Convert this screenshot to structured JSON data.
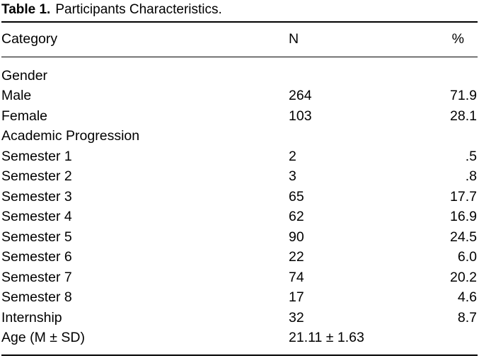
{
  "caption": {
    "label": "Table 1.",
    "text": "Participants Characteristics."
  },
  "table": {
    "columns": [
      "Category",
      "N",
      "%"
    ],
    "rows": [
      {
        "category": "Gender",
        "n": "",
        "pct": ""
      },
      {
        "category": "Male",
        "n": "264",
        "pct": "71.9"
      },
      {
        "category": "Female",
        "n": "103",
        "pct": "28.1"
      },
      {
        "category": "Academic Progression",
        "n": "",
        "pct": ""
      },
      {
        "category": "Semester 1",
        "n": "2",
        "pct": ".5"
      },
      {
        "category": "Semester 2",
        "n": "3",
        "pct": ".8"
      },
      {
        "category": "Semester 3",
        "n": "65",
        "pct": "17.7"
      },
      {
        "category": "Semester 4",
        "n": "62",
        "pct": "16.9"
      },
      {
        "category": "Semester 5",
        "n": "90",
        "pct": "24.5"
      },
      {
        "category": "Semester 6",
        "n": "22",
        "pct": "6.0"
      },
      {
        "category": "Semester 7",
        "n": "74",
        "pct": "20.2"
      },
      {
        "category": "Semester 8",
        "n": "17",
        "pct": "4.6"
      },
      {
        "category": "Internship",
        "n": "32",
        "pct": "8.7"
      },
      {
        "category": "Age (M ± SD)",
        "n": "21.11 ± 1.63",
        "pct": ""
      }
    ]
  },
  "colors": {
    "background": "#ffffff",
    "text": "#000000",
    "rule": "#000000"
  }
}
